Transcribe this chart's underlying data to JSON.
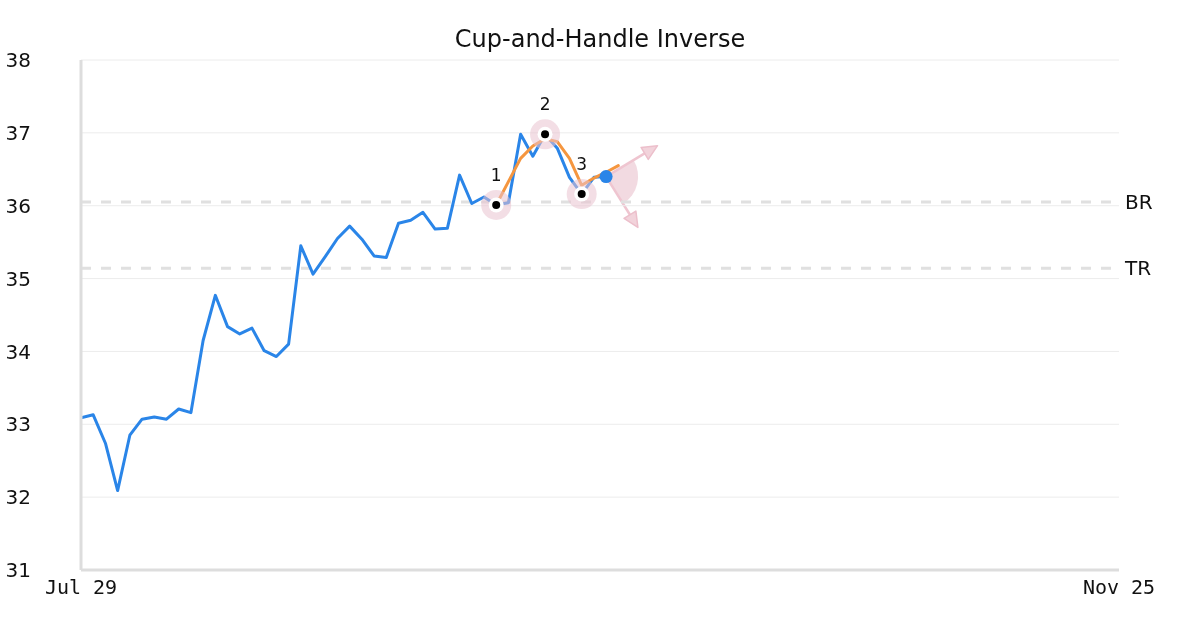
{
  "chart_data": {
    "type": "line",
    "title": "Cup-and-Handle Inverse",
    "categories": [
      "Jul 29",
      null,
      null,
      null,
      null,
      null,
      null,
      null,
      null,
      null,
      null,
      null,
      null,
      null,
      null,
      null,
      null,
      null,
      null,
      null,
      null,
      null,
      null,
      null,
      null,
      null,
      null,
      null,
      null,
      null,
      null,
      null,
      null,
      null,
      null,
      null,
      null,
      null,
      null,
      null,
      null,
      null,
      null,
      null,
      null,
      null,
      null,
      null,
      null,
      null,
      null,
      null,
      null,
      null,
      null,
      null,
      null,
      null,
      null,
      null,
      null,
      null,
      null,
      null,
      null,
      null,
      null,
      null,
      null,
      null,
      null,
      null,
      null,
      null,
      null,
      null,
      null,
      null,
      null,
      null,
      null,
      null,
      null,
      null,
      null,
      "Nov 25"
    ],
    "ylim": [
      31,
      38
    ],
    "yticks": [
      31,
      32,
      33,
      34,
      35,
      36,
      37,
      38
    ],
    "grid": "y",
    "series": [
      {
        "color": "#2a85e8",
        "values": [
          33.09,
          33.13,
          32.74,
          32.09,
          32.85,
          33.07,
          33.1,
          33.07,
          33.21,
          33.16,
          34.15,
          34.77,
          34.34,
          34.24,
          34.32,
          34.01,
          33.93,
          34.1,
          35.45,
          35.06,
          35.3,
          35.55,
          35.72,
          35.54,
          35.31,
          35.29,
          35.76,
          35.8,
          35.91,
          35.68,
          35.69,
          36.42,
          36.03,
          36.12,
          36.01,
          36.04,
          36.98,
          36.68,
          36.98,
          36.79,
          36.39,
          36.16,
          36.39,
          36.4,
          null,
          null,
          null,
          null,
          null,
          null,
          null,
          null,
          null,
          null,
          null,
          null,
          null,
          null,
          null,
          null,
          null,
          null,
          null,
          null,
          null,
          null,
          null,
          null,
          null,
          null,
          null,
          null,
          null,
          null,
          null,
          null,
          null,
          null,
          null,
          null,
          null,
          null,
          null,
          null,
          null,
          null
        ]
      },
      {
        "color": "#f5963f",
        "values": [
          null,
          null,
          null,
          null,
          null,
          null,
          null,
          null,
          null,
          null,
          null,
          null,
          null,
          null,
          null,
          null,
          null,
          null,
          null,
          null,
          null,
          null,
          null,
          null,
          null,
          null,
          null,
          null,
          null,
          null,
          null,
          null,
          null,
          null,
          36.01,
          36.33,
          36.65,
          36.82,
          36.92,
          36.88,
          36.65,
          36.28,
          36.38,
          36.46,
          36.55,
          null,
          null,
          null,
          null,
          null,
          null,
          null,
          null,
          null,
          null,
          null,
          null,
          null,
          null,
          null,
          null,
          null,
          null,
          null,
          null,
          null,
          null,
          null,
          null,
          null,
          null,
          null,
          null,
          null,
          null,
          null,
          null,
          null,
          null,
          null,
          null,
          null,
          null,
          null,
          null,
          null
        ]
      },
      {
        "type": "scatter",
        "color": "#000000",
        "marker": "circle",
        "values": [
          null,
          null,
          null,
          null,
          null,
          null,
          null,
          null,
          null,
          null,
          null,
          null,
          null,
          null,
          null,
          null,
          null,
          null,
          null,
          null,
          null,
          null,
          null,
          null,
          null,
          null,
          null,
          null,
          null,
          null,
          null,
          null,
          null,
          null,
          36.01,
          null,
          null,
          null,
          36.98,
          null,
          null,
          36.16,
          null,
          null,
          null,
          null,
          null,
          null,
          null,
          null,
          null,
          null,
          null,
          null,
          null,
          null,
          null,
          null,
          null,
          null,
          null,
          null,
          null,
          null,
          null,
          null,
          null,
          null,
          null,
          null,
          null,
          null,
          null,
          null,
          null,
          null,
          null,
          null,
          null,
          null,
          null,
          null,
          null,
          null,
          null,
          null
        ]
      },
      {
        "type": "scatter",
        "color": "#2a85e8",
        "marker": "circle",
        "values": [
          null,
          null,
          null,
          null,
          null,
          null,
          null,
          null,
          null,
          null,
          null,
          null,
          null,
          null,
          null,
          null,
          null,
          null,
          null,
          null,
          null,
          null,
          null,
          null,
          null,
          null,
          null,
          null,
          null,
          null,
          null,
          null,
          null,
          null,
          null,
          null,
          null,
          null,
          null,
          null,
          null,
          null,
          null,
          36.4,
          null,
          null,
          null,
          null,
          null,
          null,
          null,
          null,
          null,
          null,
          null,
          null,
          null,
          null,
          null,
          null,
          null,
          null,
          null,
          null,
          null,
          null,
          null,
          null,
          null,
          null,
          null,
          null,
          null,
          null,
          null,
          null,
          null,
          null,
          null,
          null,
          null,
          null,
          null,
          null,
          null,
          null
        ]
      }
    ],
    "ref_lines": [
      {
        "axis": "y",
        "value": 36.05,
        "label": "BR",
        "color": "#e0e0e0",
        "line_style": "dashed"
      },
      {
        "axis": "y",
        "value": 35.14,
        "label": "TR",
        "color": "#e0e0e0",
        "line_style": "dashed"
      }
    ],
    "annotations": [
      {
        "text": "1",
        "y": 36.01
      },
      {
        "text": "2",
        "y": 36.98
      },
      {
        "text": "3",
        "y": 36.16
      }
    ]
  }
}
